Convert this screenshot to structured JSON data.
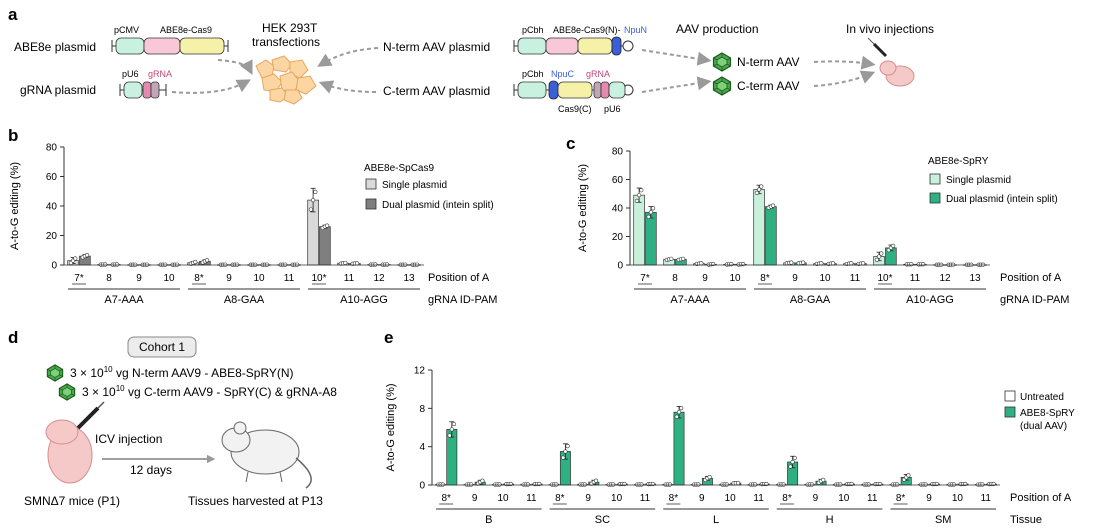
{
  "panels": {
    "a": {
      "label": "a",
      "abe8e_plasmid": "ABE8e plasmid",
      "grna_plasmid": "gRNA plasmid",
      "pcmv": "pCMV",
      "abe8e_cas9": "ABE8e-Cas9",
      "pu6": "pU6",
      "grna": "gRNA",
      "hek_line1": "HEK 293T",
      "hek_line2": "transfections",
      "nterm_plasmid": "N-term AAV plasmid",
      "cterm_plasmid": "C-term AAV plasmid",
      "pcbh": "pCbh",
      "abe8e_cas9n": "ABE8e-Cas9(N)-",
      "npun": "NpuN",
      "npuc": "NpuC",
      "cas9c": "Cas9(C)",
      "aav_production": "AAV production",
      "nterm_aav": "N-term AAV",
      "cterm_aav": "C-term AAV",
      "in_vivo": "In vivo injections"
    },
    "b": {
      "label": "b",
      "legend_title": "ABE8e-SpCas9",
      "legend": [
        "Single plasmid",
        "Dual plasmid (intein split)"
      ]
    },
    "c": {
      "label": "c",
      "legend_title": "ABE8e-SpRY",
      "legend": [
        "Single plasmid",
        "Dual plasmid (intein split)"
      ]
    },
    "d": {
      "label": "d",
      "cohort": "Cohort 1",
      "line1": "3 × 10",
      "line1_exp": "10",
      "line1_rest": " vg N-term AAV9 - ABE8-SpRY(N)",
      "line2": "3 × 10",
      "line2_exp": "10",
      "line2_rest": " vg C-term AAV9 - SpRY(C) & gRNA-A8",
      "icv": "ICV injection",
      "days": "12 days",
      "mice": "SMNΔ7 mice (P1)",
      "harvest": "Tissues harvested at P13"
    },
    "e": {
      "label": "e",
      "legend": [
        "Untreated",
        "ABE8-SpRY",
        "(dual AAV)"
      ]
    }
  },
  "colors": {
    "single_grey": "#d9d9d9",
    "dual_grey": "#7f7f7f",
    "single_green": "#c9f0dc",
    "dual_green": "#2eb082",
    "untreated": "#ffffff",
    "abe_green": "#2eb082"
  },
  "chart_data": [
    {
      "type": "bar",
      "panel": "b",
      "ylabel": "A-to-G editing (%)",
      "ylim": [
        0,
        80
      ],
      "yticks": [
        0,
        20,
        40,
        60,
        80
      ],
      "position_label": "Position of A",
      "group_label": "gRNA ID-PAM",
      "groups": [
        {
          "name": "A7-AAA",
          "positions": [
            "7*",
            "8",
            "9",
            "10"
          ]
        },
        {
          "name": "A8-GAA",
          "positions": [
            "8*",
            "9",
            "10",
            "11"
          ]
        },
        {
          "name": "A10-AGG",
          "positions": [
            "10*",
            "11",
            "12",
            "13"
          ]
        }
      ],
      "series": [
        {
          "name": "Single plasmid",
          "values": [
            3,
            0.3,
            0.2,
            0.2,
            1.5,
            0.2,
            0.2,
            0.2,
            44,
            1.2,
            0.3,
            0.2
          ],
          "errors": [
            2,
            0,
            0,
            0,
            0.8,
            0,
            0,
            0,
            8,
            0.3,
            0,
            0
          ]
        },
        {
          "name": "Dual plasmid (intein split)",
          "values": [
            6,
            0.3,
            0.2,
            0.2,
            2.5,
            0.2,
            0.2,
            0.2,
            26,
            1,
            0.3,
            0.2
          ],
          "errors": [
            1,
            0,
            0,
            0,
            1,
            0,
            0,
            0,
            1,
            0.2,
            0,
            0
          ]
        }
      ]
    },
    {
      "type": "bar",
      "panel": "c",
      "ylabel": "A-to-G editing (%)",
      "ylim": [
        0,
        80
      ],
      "yticks": [
        0,
        20,
        40,
        60,
        80
      ],
      "position_label": "Position of A",
      "group_label": "gRNA ID-PAM",
      "groups": [
        {
          "name": "A7-AAA",
          "positions": [
            "7*",
            "8",
            "9",
            "10"
          ]
        },
        {
          "name": "A8-GAA",
          "positions": [
            "8*",
            "9",
            "10",
            "11"
          ]
        },
        {
          "name": "A10-AGG",
          "positions": [
            "10*",
            "11",
            "12",
            "13"
          ]
        }
      ],
      "series": [
        {
          "name": "Single plasmid",
          "values": [
            49,
            4,
            1,
            0.5,
            53,
            1.5,
            1,
            1,
            6,
            0.5,
            0.2,
            0.2
          ],
          "errors": [
            5,
            0.5,
            0.3,
            0.2,
            3,
            0.3,
            0.3,
            0.3,
            3,
            0,
            0,
            0
          ]
        },
        {
          "name": "Dual plasmid (intein split)",
          "values": [
            37,
            4,
            0.5,
            0.5,
            41,
            1.5,
            1,
            1,
            12,
            0.5,
            0.2,
            0.2
          ],
          "errors": [
            4,
            0.5,
            0.3,
            0.2,
            1,
            0.3,
            0.3,
            0.3,
            2,
            0,
            0,
            0
          ]
        }
      ]
    },
    {
      "type": "bar",
      "panel": "e",
      "ylabel": "A-to-G editing (%)",
      "ylim": [
        0,
        12
      ],
      "yticks": [
        0,
        4,
        8,
        12
      ],
      "position_label": "Position of A",
      "group_label": "Tissue",
      "groups": [
        {
          "name": "B",
          "positions": [
            "8*",
            "9",
            "10",
            "11"
          ]
        },
        {
          "name": "SC",
          "positions": [
            "8*",
            "9",
            "10",
            "11"
          ]
        },
        {
          "name": "L",
          "positions": [
            "8*",
            "9",
            "10",
            "11"
          ]
        },
        {
          "name": "H",
          "positions": [
            "8*",
            "9",
            "10",
            "11"
          ]
        },
        {
          "name": "SM",
          "positions": [
            "8*",
            "9",
            "10",
            "11"
          ]
        }
      ],
      "series": [
        {
          "name": "Untreated",
          "values": [
            0.05,
            0.05,
            0.05,
            0.05,
            0.05,
            0.05,
            0.05,
            0.05,
            0.05,
            0.05,
            0.05,
            0.05,
            0.05,
            0.05,
            0.05,
            0.05,
            0.05,
            0.05,
            0.05,
            0.05
          ],
          "errors": [
            0,
            0,
            0,
            0,
            0,
            0,
            0,
            0,
            0,
            0,
            0,
            0,
            0,
            0,
            0,
            0,
            0,
            0,
            0,
            0
          ]
        },
        {
          "name": "ABE8-SpRY (dual AAV)",
          "values": [
            5.8,
            0.3,
            0.1,
            0.1,
            3.5,
            0.3,
            0.1,
            0.1,
            7.6,
            0.7,
            0.2,
            0.1,
            2.4,
            0.4,
            0.1,
            0.1,
            0.8,
            0.1,
            0.1,
            0.1
          ],
          "errors": [
            0.8,
            0.2,
            0,
            0,
            0.8,
            0.2,
            0,
            0,
            0.6,
            0.2,
            0,
            0,
            0.6,
            0.2,
            0,
            0,
            0.3,
            0,
            0,
            0
          ]
        }
      ]
    }
  ]
}
